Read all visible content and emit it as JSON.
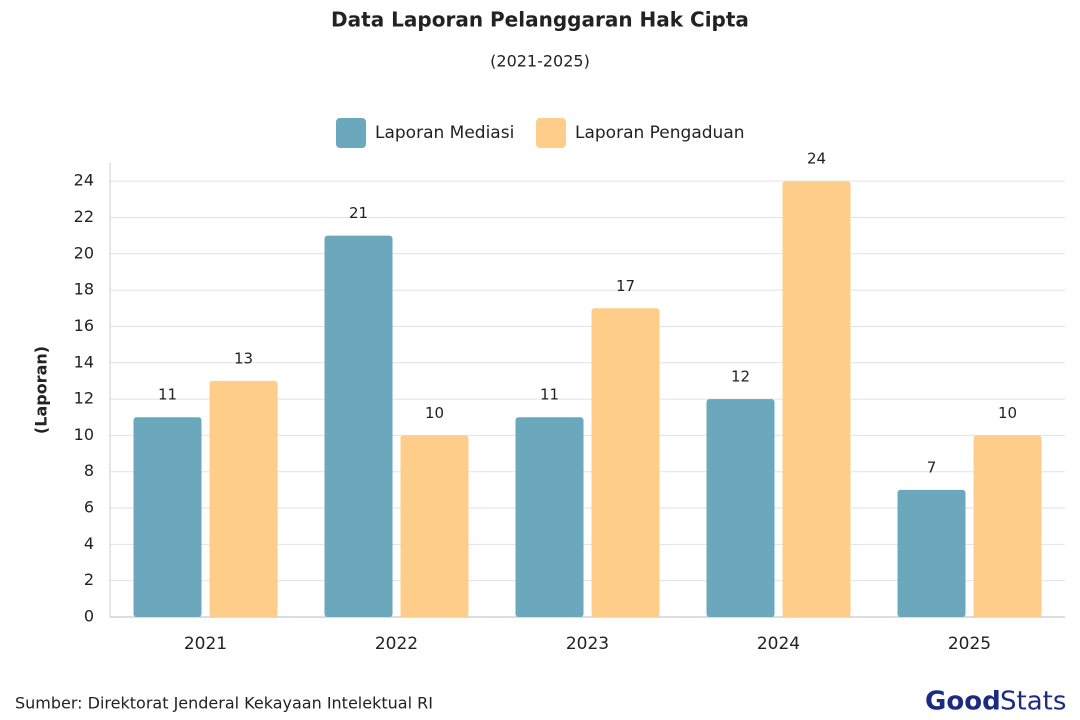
{
  "chart_data": {
    "type": "bar",
    "title": "Data Laporan Pelanggaran Hak Cipta",
    "subtitle": "(2021-2025)",
    "y_label": "(Laporan)",
    "categories": [
      "2021",
      "2022",
      "2023",
      "2024",
      "2025"
    ],
    "series": [
      {
        "name": "Laporan Mediasi",
        "color": "#6ba7bd",
        "values": [
          11,
          21,
          11,
          12,
          7
        ]
      },
      {
        "name": "Laporan Pengaduan",
        "color": "#ffcd8a",
        "values": [
          13,
          10,
          17,
          24,
          10
        ]
      }
    ],
    "ylim": [
      0,
      25
    ],
    "yticks": [
      0,
      2,
      4,
      6,
      8,
      10,
      12,
      14,
      16,
      18,
      20,
      22,
      24
    ],
    "grid": true,
    "legend": "top",
    "source": "Sumber: Direktorat Jenderal Kekayaan Intelektual RI",
    "logo": {
      "good": "Good",
      "stats": "Stats"
    }
  }
}
